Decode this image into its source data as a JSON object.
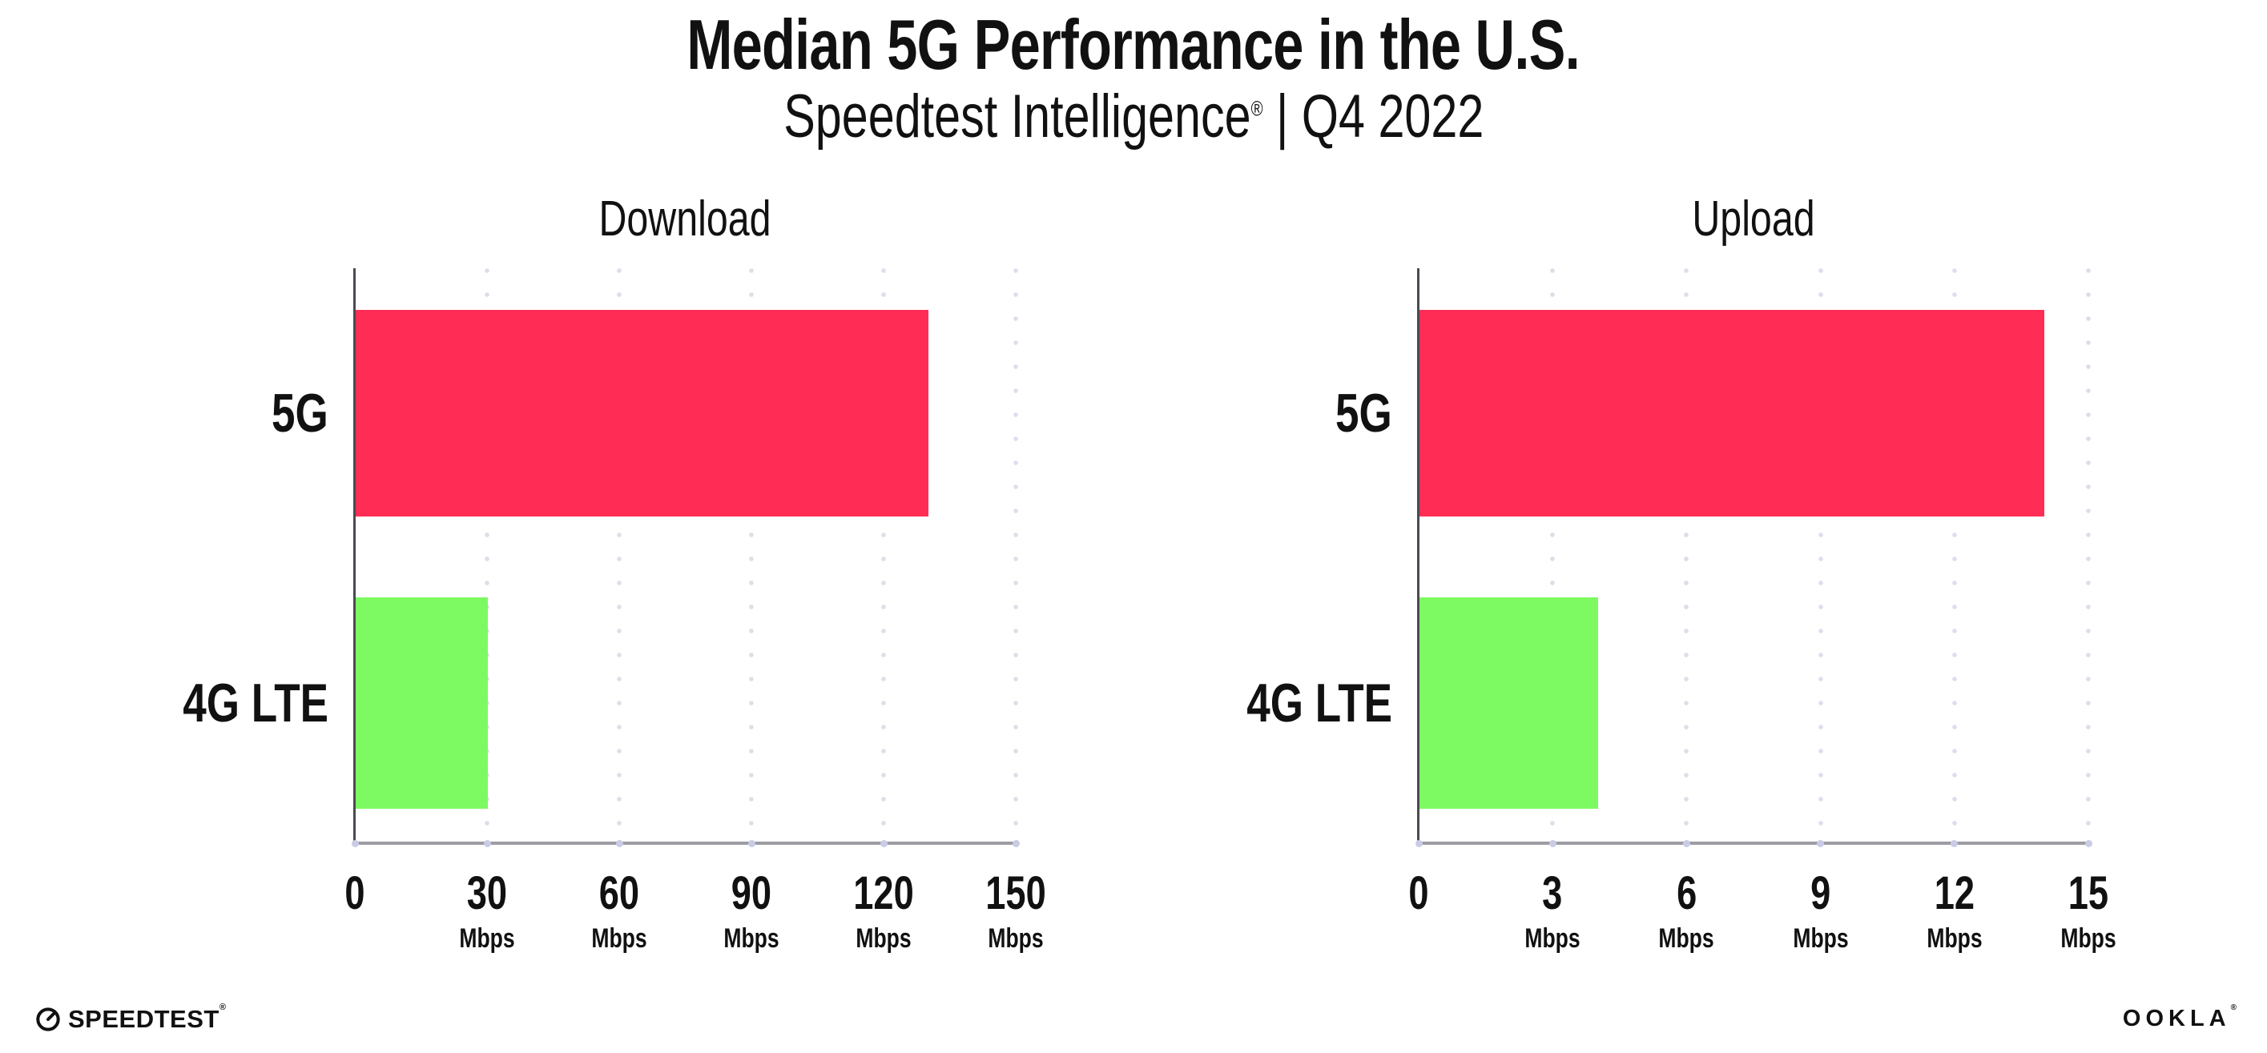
{
  "header": {
    "title": "Median 5G Performance in the U.S.",
    "subtitle_brand": "Speedtest Intelligence",
    "subtitle_mark": "®",
    "subtitle_rest": " | Q4 2022"
  },
  "footer": {
    "speedtest_wordmark": "SPEEDTEST",
    "speedtest_mark": "®",
    "ookla_wordmark": "OOKLA",
    "ookla_mark": "®"
  },
  "colors": {
    "bar_5g": "#FF2D55",
    "bar_4g_lte": "#7DFA61",
    "x_axis": "#9C9CA3",
    "y_axis": "#4A4A52",
    "gridline": "#DEDEE9",
    "tick_dot": "#C9CCE4",
    "text": "#111111"
  },
  "chart_data": [
    {
      "type": "bar",
      "orientation": "horizontal",
      "title": "Download",
      "categories": [
        "5G",
        "4G LTE"
      ],
      "values": [
        130,
        30
      ],
      "unit": "Mbps",
      "xlabel": "",
      "ylabel": "",
      "xlim": [
        0,
        150
      ],
      "xticks": [
        0,
        30,
        60,
        90,
        120,
        150
      ],
      "grid": "vertical dotted gridline at each tick",
      "legend": "none",
      "bar_colors": [
        "#FF2D55",
        "#7DFA61"
      ]
    },
    {
      "type": "bar",
      "orientation": "horizontal",
      "title": "Upload",
      "categories": [
        "5G",
        "4G LTE"
      ],
      "values": [
        14,
        4
      ],
      "unit": "Mbps",
      "xlabel": "",
      "ylabel": "",
      "xlim": [
        0,
        15
      ],
      "xticks": [
        0,
        3,
        6,
        9,
        12,
        15
      ],
      "grid": "vertical dotted gridline at each tick",
      "legend": "none",
      "bar_colors": [
        "#FF2D55",
        "#7DFA61"
      ]
    }
  ]
}
